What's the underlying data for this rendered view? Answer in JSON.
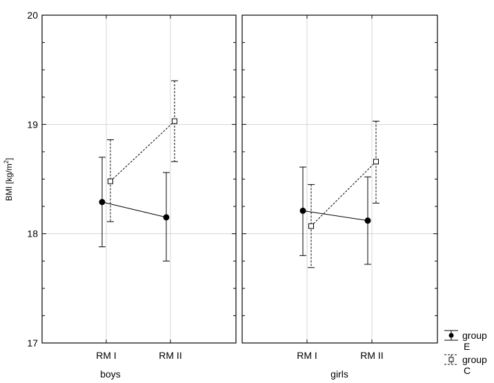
{
  "chart_data": {
    "type": "line",
    "ylabel": "BMI [kg/m²]",
    "ylabel_parts": {
      "base": "BMI [kg/m",
      "sup": "2",
      "tail": "]"
    },
    "ylim": [
      17,
      20
    ],
    "yticks": [
      17,
      18,
      19,
      20
    ],
    "categories": [
      "RM I",
      "RM II"
    ],
    "grid": true,
    "legend_position": "bottom-right",
    "panels": [
      {
        "label": "boys",
        "series": [
          {
            "key": "E",
            "line1": "group",
            "line2": "E",
            "marker": "filled-circle",
            "line": "solid",
            "values": [
              18.29,
              18.15
            ],
            "lower": [
              17.88,
              17.75
            ],
            "upper": [
              18.7,
              18.56
            ]
          },
          {
            "key": "C",
            "line1": "group",
            "line2": "C",
            "marker": "open-square",
            "line": "dashed",
            "values": [
              18.48,
              19.03
            ],
            "lower": [
              18.11,
              18.66
            ],
            "upper": [
              18.86,
              19.4
            ]
          }
        ]
      },
      {
        "label": "girls",
        "series": [
          {
            "key": "E",
            "line1": "group",
            "line2": "E",
            "marker": "filled-circle",
            "line": "solid",
            "values": [
              18.21,
              18.12
            ],
            "lower": [
              17.8,
              17.72
            ],
            "upper": [
              18.61,
              18.52
            ]
          },
          {
            "key": "C",
            "line1": "group",
            "line2": "C",
            "marker": "open-square",
            "line": "dashed",
            "values": [
              18.07,
              18.66
            ],
            "lower": [
              17.69,
              18.28
            ],
            "upper": [
              18.45,
              19.03
            ]
          }
        ]
      }
    ],
    "legend": [
      {
        "key": "E",
        "line1": "group",
        "line2": "E"
      },
      {
        "key": "C",
        "line1": "group",
        "line2": "C"
      }
    ]
  }
}
